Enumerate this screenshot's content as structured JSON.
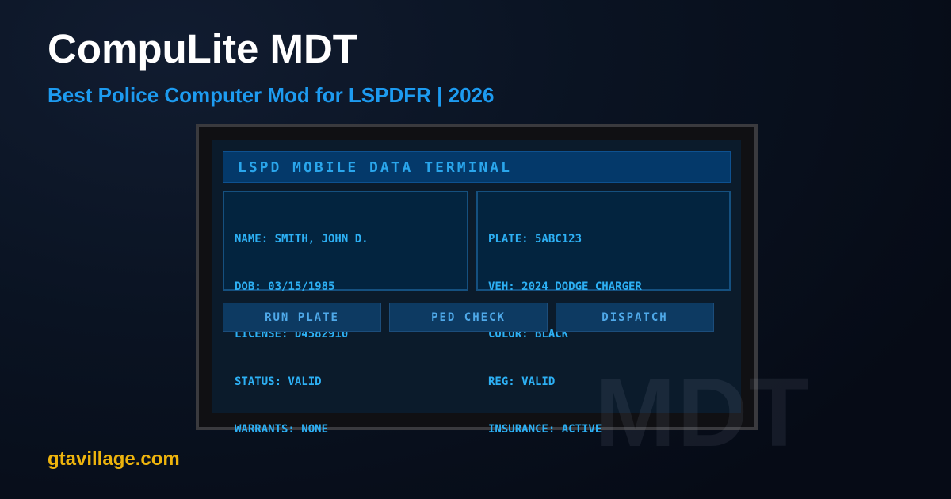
{
  "header": {
    "title": "CompuLite MDT",
    "subtitle": "Best Police Computer Mod for LSPDFR | 2026"
  },
  "terminal": {
    "title": "LSPD MOBILE DATA TERMINAL",
    "person_record": [
      "NAME: SMITH, JOHN D.",
      "DOB: 03/15/1985",
      "LICENSE: D4582910",
      "STATUS: VALID",
      "WARRANTS: NONE"
    ],
    "vehicle_record": [
      "PLATE: 5ABC123",
      "VEH: 2024 DODGE CHARGER",
      "COLOR: BLACK",
      "REG: VALID",
      "INSURANCE: ACTIVE"
    ],
    "buttons": [
      "RUN PLATE",
      "PED CHECK",
      "DISPATCH"
    ]
  },
  "watermark": "MDT",
  "footer": {
    "site": "gtavillage.com"
  },
  "colors": {
    "accent_blue": "#1d9bf0",
    "terminal_text": "#2db0f4",
    "header_bar_blue": "#04396a",
    "button_blue": "#0d3a62",
    "gold": "#eeb40d",
    "screen_navy": "#0b1b2b"
  }
}
